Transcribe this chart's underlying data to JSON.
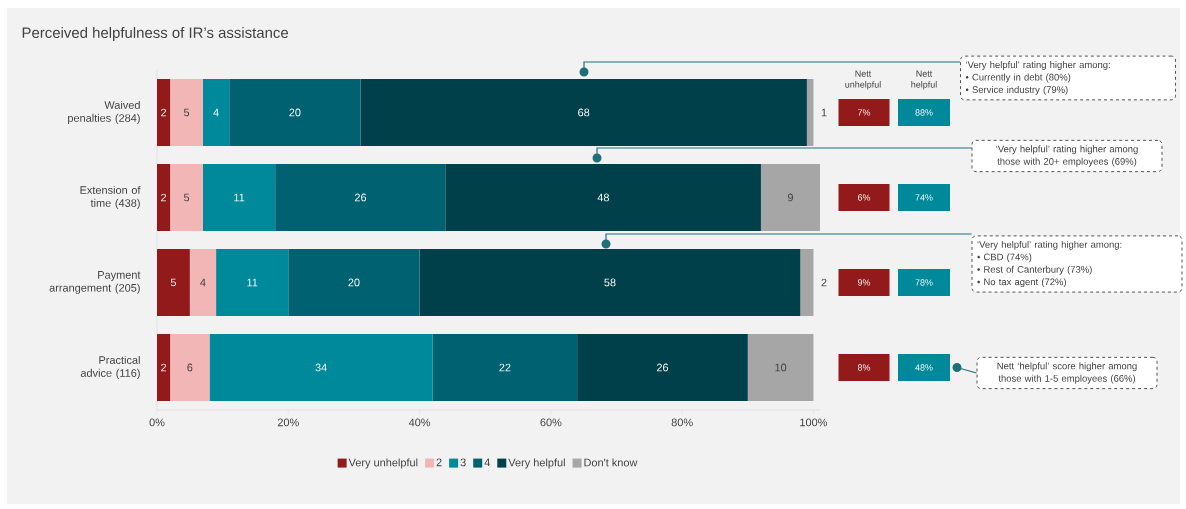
{
  "chart_data": {
    "type": "bar",
    "orientation": "horizontal",
    "stacked": true,
    "title": "Perceived helpfulness of IR’s assistance",
    "categories": [
      "Waived penalties (284)",
      "Extension of time (438)",
      "Payment arrangement (205)",
      "Practical advice (116)"
    ],
    "series": [
      {
        "name": "Very unhelpful",
        "color": "#921a1a",
        "values": [
          2,
          2,
          5,
          2
        ]
      },
      {
        "name": "2",
        "color": "#f2b6b6",
        "values": [
          5,
          5,
          4,
          6
        ]
      },
      {
        "name": "3",
        "color": "#00889b",
        "values": [
          4,
          11,
          11,
          34
        ]
      },
      {
        "name": "4",
        "color": "#006271",
        "values": [
          20,
          26,
          20,
          22
        ]
      },
      {
        "name": "Very helpful",
        "color": "#00404a",
        "values": [
          68,
          48,
          58,
          26
        ]
      },
      {
        "name": "Don't know",
        "color": "#a6a6a6",
        "values": [
          1,
          9,
          2,
          10
        ]
      }
    ],
    "xlim": [
      0,
      101
    ],
    "xticks": [
      {
        "value": 0,
        "label": "0%"
      },
      {
        "value": 20,
        "label": "20%"
      },
      {
        "value": 40,
        "label": "40%"
      },
      {
        "value": 60,
        "label": "60%"
      },
      {
        "value": 80,
        "label": "80%"
      },
      {
        "value": 100,
        "label": "100%"
      }
    ],
    "data_labels": true,
    "legend": "bottom",
    "grid": false,
    "annotations": [
      "‘Very helpful’ rating higher among:",
      "• Currently in debt (80%)",
      "• Service industry (79%)",
      "‘Very helpful’ rating higher among those with 20+ employees (69%)",
      "‘Very helpful’ rating higher among:",
      "• CBD (74%)",
      "• Rest of Canterbury (73%)",
      "• No tax agent (72%)",
      "Nett ‘helpful’ score higher among those with 1-5 employees (66%)",
      "Nett unhelpful",
      "Nett helpful",
      "7%",
      "88%",
      "6%",
      "74%",
      "9%",
      "78%",
      "8%",
      "48%"
    ]
  }
}
